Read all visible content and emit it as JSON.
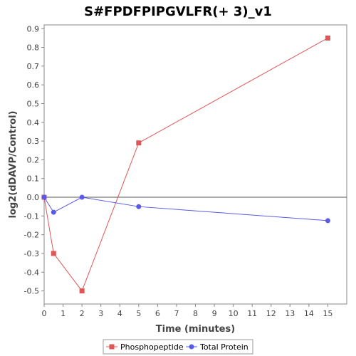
{
  "chart_data": {
    "type": "line",
    "title": "S#FPDFPIPGVLFR(+ 3)_v1",
    "xlabel": "Time (minutes)",
    "ylabel": "log2(dDAVP/Control)",
    "xlim": [
      0,
      16
    ],
    "ylim": [
      -0.57,
      0.92
    ],
    "xticks": [
      0,
      1,
      2,
      3,
      4,
      5,
      6,
      7,
      8,
      9,
      10,
      11,
      12,
      13,
      14,
      15
    ],
    "yticks": [
      -0.5,
      -0.4,
      -0.3,
      -0.2,
      -0.1,
      0.0,
      0.1,
      0.2,
      0.3,
      0.4,
      0.5,
      0.6,
      0.7,
      0.8,
      0.9
    ],
    "grid": false,
    "zero_line": true,
    "legend_position": "bottom",
    "series": [
      {
        "name": "Phosphopeptide",
        "color": "#e05555",
        "marker": "square",
        "x": [
          0,
          0.5,
          2,
          5,
          15
        ],
        "y": [
          0.0,
          -0.3,
          -0.5,
          0.29,
          0.85
        ]
      },
      {
        "name": "Total Protein",
        "color": "#5a5ae8",
        "marker": "circle",
        "x": [
          0,
          0.5,
          2,
          5,
          15
        ],
        "y": [
          0.0,
          -0.08,
          0.0,
          -0.05,
          -0.125
        ]
      }
    ]
  }
}
